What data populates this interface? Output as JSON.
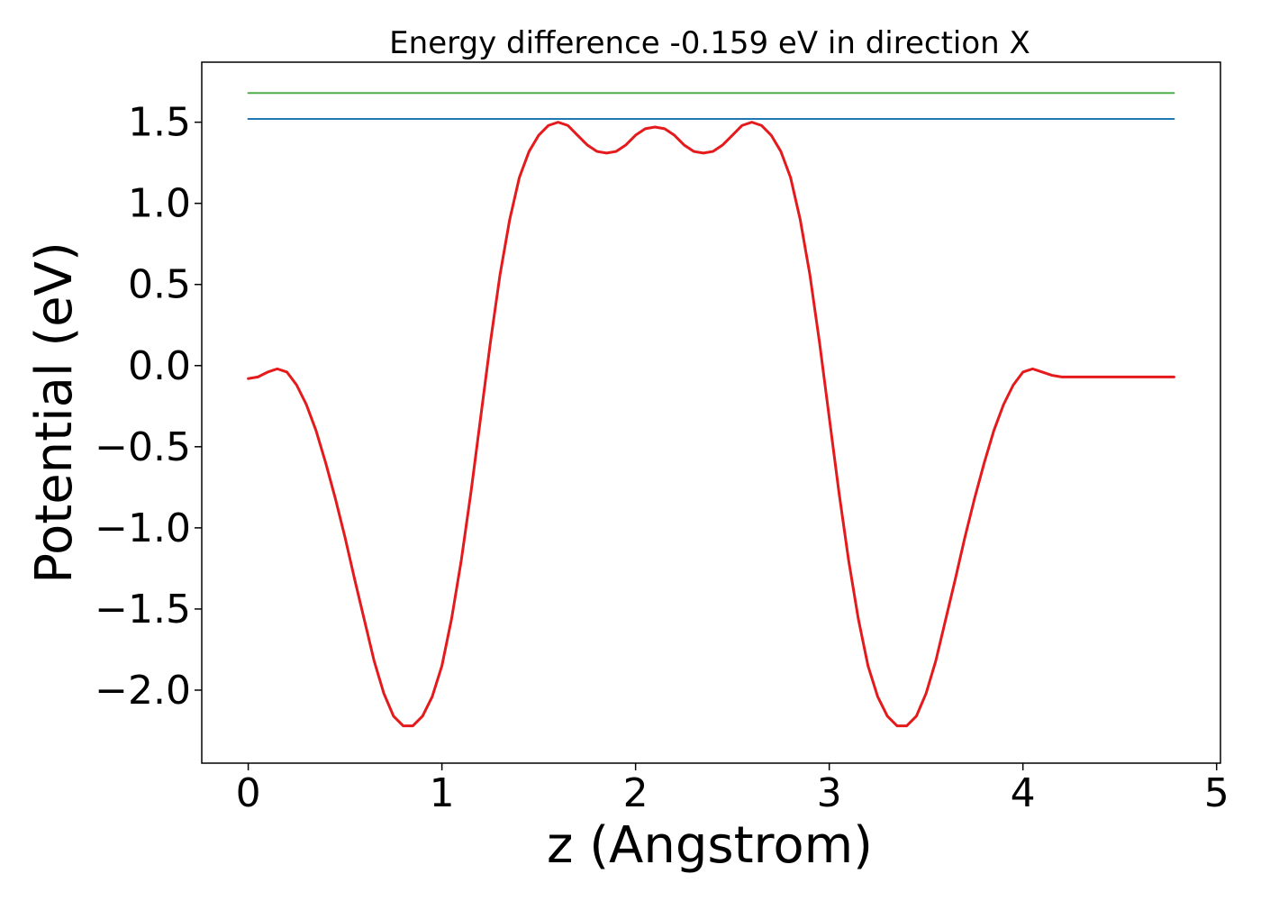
{
  "chart_data": {
    "type": "line",
    "title": "Energy difference -0.159 eV in direction X",
    "xlabel": "z (Angstrom)",
    "ylabel": "Potential (eV)",
    "xlim": [
      -0.24,
      5.02
    ],
    "ylim": [
      -2.45,
      1.87
    ],
    "x_ticks": [
      0,
      1,
      2,
      3,
      4,
      5
    ],
    "x_tick_labels": [
      "0",
      "1",
      "2",
      "3",
      "4",
      "5"
    ],
    "y_ticks": [
      -2.0,
      -1.5,
      -1.0,
      -0.5,
      0.0,
      0.5,
      1.0,
      1.5
    ],
    "y_tick_labels": [
      "−2.0",
      "−1.5",
      "−1.0",
      "−0.5",
      "0.0",
      "0.5",
      "1.0",
      "1.5"
    ],
    "grid": false,
    "series": [
      {
        "color": "#e41a1c",
        "style": "curve",
        "x": [
          0.0,
          0.05,
          0.1,
          0.15,
          0.2,
          0.25,
          0.3,
          0.35,
          0.4,
          0.45,
          0.5,
          0.55,
          0.6,
          0.65,
          0.7,
          0.75,
          0.8,
          0.85,
          0.9,
          0.95,
          1.0,
          1.05,
          1.1,
          1.15,
          1.2,
          1.25,
          1.3,
          1.35,
          1.4,
          1.45,
          1.5,
          1.55,
          1.6,
          1.65,
          1.7,
          1.75,
          1.8,
          1.85,
          1.9,
          1.95,
          2.0,
          2.05,
          2.1,
          2.15,
          2.2,
          2.25,
          2.3,
          2.35,
          2.4,
          2.45,
          2.5,
          2.55,
          2.6,
          2.65,
          2.7,
          2.75,
          2.8,
          2.85,
          2.9,
          2.95,
          3.0,
          3.05,
          3.1,
          3.15,
          3.2,
          3.25,
          3.3,
          3.35,
          3.4,
          3.45,
          3.5,
          3.55,
          3.6,
          3.65,
          3.7,
          3.75,
          3.8,
          3.85,
          3.9,
          3.95,
          4.0,
          4.05,
          4.1,
          4.15,
          4.2,
          4.25,
          4.3,
          4.35,
          4.4,
          4.45,
          4.5,
          4.55,
          4.6,
          4.65,
          4.7,
          4.75,
          4.78
        ],
        "y": [
          -0.08,
          -0.07,
          -0.04,
          -0.02,
          -0.04,
          -0.12,
          -0.24,
          -0.4,
          -0.6,
          -0.82,
          -1.06,
          -1.32,
          -1.57,
          -1.82,
          -2.02,
          -2.16,
          -2.22,
          -2.22,
          -2.16,
          -2.04,
          -1.85,
          -1.56,
          -1.2,
          -0.78,
          -0.32,
          0.14,
          0.56,
          0.9,
          1.16,
          1.32,
          1.42,
          1.48,
          1.5,
          1.48,
          1.42,
          1.36,
          1.32,
          1.31,
          1.32,
          1.36,
          1.42,
          1.46,
          1.47,
          1.46,
          1.42,
          1.36,
          1.32,
          1.31,
          1.32,
          1.36,
          1.42,
          1.48,
          1.5,
          1.48,
          1.42,
          1.32,
          1.16,
          0.9,
          0.56,
          0.14,
          -0.32,
          -0.78,
          -1.2,
          -1.56,
          -1.85,
          -2.04,
          -2.16,
          -2.22,
          -2.22,
          -2.16,
          -2.02,
          -1.82,
          -1.57,
          -1.32,
          -1.06,
          -0.82,
          -0.6,
          -0.4,
          -0.24,
          -0.12,
          -0.04,
          -0.02,
          -0.04,
          -0.06,
          -0.07,
          -0.07,
          -0.07,
          -0.07,
          -0.07,
          -0.07,
          -0.07,
          -0.07,
          -0.07,
          -0.07,
          -0.07,
          -0.07,
          -0.07
        ]
      },
      {
        "color": "#1f77b4",
        "style": "hline",
        "x": [
          0.0,
          4.78
        ],
        "y": [
          1.52,
          1.52
        ]
      },
      {
        "color": "#4daf4a",
        "style": "hline",
        "x": [
          0.0,
          4.78
        ],
        "y": [
          1.68,
          1.68
        ]
      }
    ]
  }
}
